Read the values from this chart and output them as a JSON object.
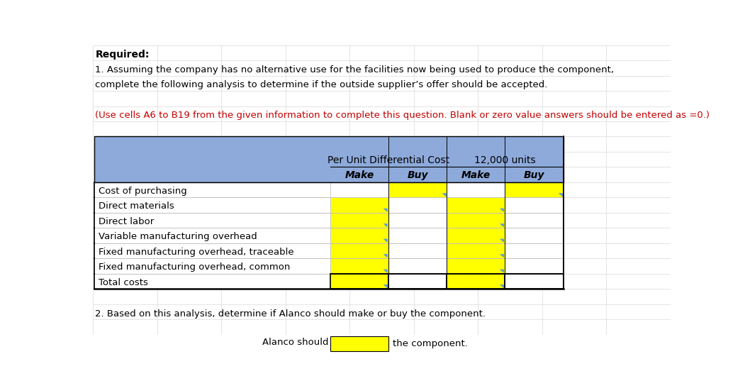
{
  "title_line1": "Required:",
  "title_line2": "1. Assuming the company has no alternative use for the facilities now being used to produce the component,",
  "title_line3": "complete the following analysis to determine if the outside supplier’s offer should be accepted.",
  "instruction": "(Use cells A6 to B19 from the given information to complete this question. Blank or zero value answers should be entered as =0.)",
  "header_bg": "#8eaadb",
  "header_text1": "Per Unit Differential Cost",
  "header_text2": "12,000 units",
  "col_headers": [
    "Make",
    "Buy",
    "Make",
    "Buy"
  ],
  "row_labels": [
    "Cost of purchasing",
    "Direct materials",
    "Direct labor",
    "Variable manufacturing overhead",
    "Fixed manufacturing overhead, traceable",
    "Fixed manufacturing overhead, common",
    "Total costs"
  ],
  "yellow": "#ffff00",
  "white": "#ffffff",
  "grid_color": "#bfbfbf",
  "table_border": "#000000",
  "analysis_text": "2. Based on this analysis, determine if Alanco should make or buy the component.",
  "alanco_text_left": "Alanco should",
  "alanco_text_right": "the component.",
  "fig_bg": "#ffffff",
  "outer_grid_color": "#d9d9d9",
  "instruction_color": "#c00000",
  "cell_colors": [
    [
      "white",
      "yellow",
      "white",
      "yellow"
    ],
    [
      "yellow",
      "white",
      "yellow",
      "white"
    ],
    [
      "yellow",
      "white",
      "yellow",
      "white"
    ],
    [
      "yellow",
      "white",
      "yellow",
      "white"
    ],
    [
      "yellow",
      "white",
      "yellow",
      "white"
    ],
    [
      "yellow",
      "white",
      "yellow",
      "white"
    ],
    [
      "yellow",
      "white",
      "yellow",
      "white"
    ]
  ],
  "n_bg_cols": 9,
  "n_bg_rows": 19
}
